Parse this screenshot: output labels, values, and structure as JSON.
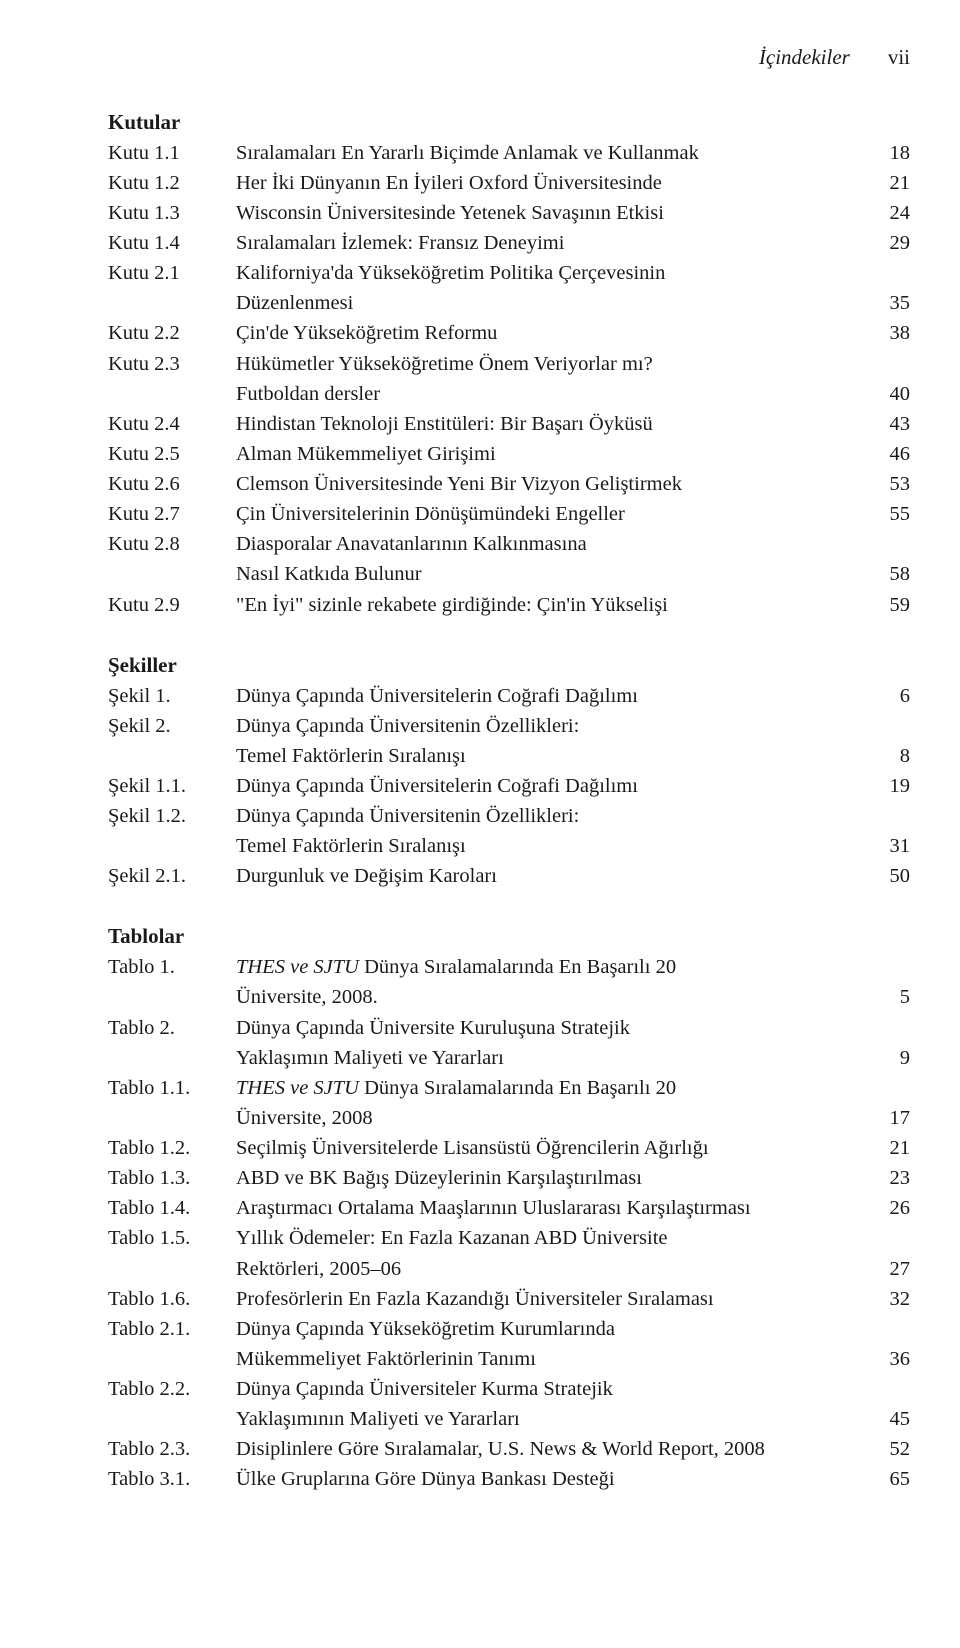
{
  "colors": {
    "background": "#ffffff",
    "text": "#1a1a1a"
  },
  "typography": {
    "font_family": "Minion Pro / Garamond / serif",
    "base_fontsize_pt": 15,
    "line_height": 1.47,
    "heading_weight": 700
  },
  "header": {
    "title": "İçindekiler",
    "page_number": "vii"
  },
  "kutular": {
    "heading": "Kutular",
    "entries": [
      {
        "label": "Kutu 1.1",
        "lines": [
          {
            "text": "Sıralamaları En Yararlı Biçimde Anlamak ve Kullanmak",
            "page": "18"
          }
        ]
      },
      {
        "label": "Kutu 1.2",
        "lines": [
          {
            "text": "Her İki Dünyanın En İyileri Oxford Üniversitesinde",
            "page": "21"
          }
        ]
      },
      {
        "label": "Kutu 1.3",
        "lines": [
          {
            "text": "Wisconsin Üniversitesinde Yetenek Savaşının Etkisi",
            "page": "24"
          }
        ]
      },
      {
        "label": "Kutu 1.4",
        "lines": [
          {
            "text": "Sıralamaları İzlemek: Fransız Deneyimi",
            "page": "29"
          }
        ]
      },
      {
        "label": "Kutu 2.1",
        "lines": [
          {
            "text": "Kaliforniya'da Yükseköğretim Politika Çerçevesinin",
            "page": ""
          },
          {
            "text": "Düzenlenmesi",
            "page": "35"
          }
        ]
      },
      {
        "label": "Kutu 2.2",
        "lines": [
          {
            "text": "Çin'de Yükseköğretim Reformu",
            "page": "38"
          }
        ]
      },
      {
        "label": "Kutu 2.3",
        "lines": [
          {
            "text": "Hükümetler Yükseköğretime Önem Veriyorlar mı?",
            "page": ""
          },
          {
            "text": "Futboldan dersler",
            "page": "40"
          }
        ]
      },
      {
        "label": "Kutu 2.4",
        "lines": [
          {
            "text": "Hindistan Teknoloji Enstitüleri: Bir Başarı Öyküsü",
            "page": "43"
          }
        ]
      },
      {
        "label": "Kutu 2.5",
        "lines": [
          {
            "text": "Alman Mükemmeliyet Girişimi",
            "page": "46"
          }
        ]
      },
      {
        "label": "Kutu 2.6",
        "lines": [
          {
            "text": "Clemson Üniversitesinde Yeni Bir Vizyon Geliştirmek",
            "page": "53"
          }
        ]
      },
      {
        "label": "Kutu 2.7",
        "lines": [
          {
            "text": "Çin Üniversitelerinin Dönüşümündeki Engeller",
            "page": "55"
          }
        ]
      },
      {
        "label": "Kutu 2.8",
        "lines": [
          {
            "text": "Diasporalar Anavatanlarının Kalkınmasına",
            "page": ""
          },
          {
            "text": "Nasıl Katkıda Bulunur",
            "page": "58"
          }
        ]
      },
      {
        "label": "Kutu 2.9",
        "lines": [
          {
            "text": "\"En İyi\" sizinle rekabete girdiğinde: Çin'in Yükselişi",
            "page": "59"
          }
        ]
      }
    ]
  },
  "sekiller": {
    "heading": "Şekiller",
    "entries": [
      {
        "label": "Şekil 1.",
        "lines": [
          {
            "text": "Dünya Çapında Üniversitelerin Coğrafi Dağılımı",
            "page": "6"
          }
        ]
      },
      {
        "label": "Şekil 2.",
        "lines": [
          {
            "text": "Dünya Çapında Üniversitenin Özellikleri:",
            "page": ""
          },
          {
            "text": "Temel Faktörlerin Sıralanışı",
            "page": "8"
          }
        ]
      },
      {
        "label": "Şekil 1.1.",
        "lines": [
          {
            "text": "Dünya Çapında Üniversitelerin Coğrafi Dağılımı",
            "page": "19"
          }
        ]
      },
      {
        "label": "Şekil 1.2.",
        "lines": [
          {
            "text": "Dünya Çapında Üniversitenin Özellikleri:",
            "page": ""
          },
          {
            "text": "Temel Faktörlerin Sıralanışı",
            "page": "31"
          }
        ]
      },
      {
        "label": "Şekil 2.1.",
        "lines": [
          {
            "text": "Durgunluk ve Değişim Karoları",
            "page": "50"
          }
        ]
      }
    ]
  },
  "tablolar": {
    "heading": "Tablolar",
    "entries": [
      {
        "label": "Tablo 1.",
        "lines": [
          {
            "spans": [
              {
                "t": "THES ve SJTU",
                "italic": true
              },
              {
                "t": " Dünya Sıralamalarında En Başarılı 20"
              }
            ],
            "page": ""
          },
          {
            "text": "Üniversite, 2008.",
            "page": "5"
          }
        ]
      },
      {
        "label": "Tablo 2.",
        "lines": [
          {
            "text": "Dünya Çapında Üniversite Kuruluşuna Stratejik",
            "page": ""
          },
          {
            "text": "Yaklaşımın Maliyeti ve Yararları",
            "page": "9"
          }
        ]
      },
      {
        "label": "Tablo 1.1.",
        "lines": [
          {
            "spans": [
              {
                "t": "THES ve SJTU",
                "italic": true
              },
              {
                "t": " Dünya Sıralamalarında En Başarılı 20"
              }
            ],
            "page": ""
          },
          {
            "text": "Üniversite, 2008",
            "page": "17"
          }
        ]
      },
      {
        "label": "Tablo 1.2.",
        "lines": [
          {
            "text": "Seçilmiş Üniversitelerde Lisansüstü Öğrencilerin Ağırlığı",
            "page": "21"
          }
        ]
      },
      {
        "label": "Tablo 1.3.",
        "lines": [
          {
            "text": "ABD ve BK Bağış Düzeylerinin Karşılaştırılması",
            "page": "23"
          }
        ]
      },
      {
        "label": "Tablo 1.4.",
        "lines": [
          {
            "text": "Araştırmacı Ortalama Maaşlarının Uluslararası Karşılaştırması",
            "page": "26"
          }
        ]
      },
      {
        "label": "Tablo 1.5.",
        "lines": [
          {
            "text": "Yıllık Ödemeler: En Fazla Kazanan ABD Üniversite",
            "page": ""
          },
          {
            "text": "Rektörleri, 2005–06",
            "page": "27"
          }
        ]
      },
      {
        "label": "Tablo 1.6.",
        "lines": [
          {
            "text": "Profesörlerin En Fazla Kazandığı Üniversiteler Sıralaması",
            "page": "32"
          }
        ]
      },
      {
        "label": "Tablo 2.1.",
        "lines": [
          {
            "text": "Dünya Çapında Yükseköğretim Kurumlarında",
            "page": ""
          },
          {
            "text": "Mükemmeliyet Faktörlerinin Tanımı",
            "page": "36"
          }
        ]
      },
      {
        "label": "Tablo 2.2.",
        "lines": [
          {
            "text": "Dünya Çapında Üniversiteler Kurma Stratejik",
            "page": ""
          },
          {
            "text": "Yaklaşımının Maliyeti ve Yararları",
            "page": "45"
          }
        ]
      },
      {
        "label": "Tablo 2.3.",
        "lines": [
          {
            "text": "Disiplinlere Göre Sıralamalar, U.S. News & World Report, 2008",
            "page": "52"
          }
        ]
      },
      {
        "label": "Tablo 3.1.",
        "lines": [
          {
            "text": "Ülke Gruplarına Göre Dünya Bankası Desteği",
            "page": "65"
          }
        ]
      }
    ]
  }
}
